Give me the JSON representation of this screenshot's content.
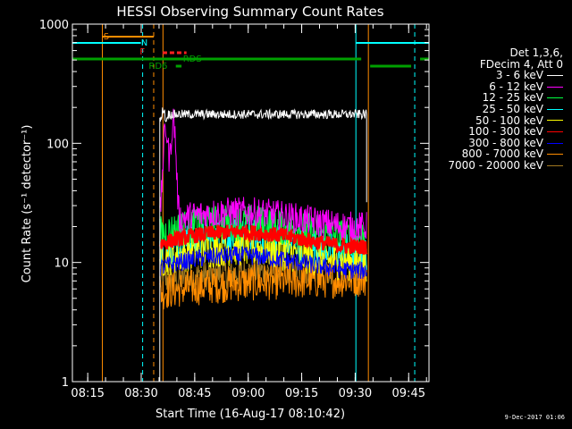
{
  "colors": {
    "background": "#000000",
    "axes": "#ffffff",
    "black_line": "#ffffff",
    "cyan": "#00ffff",
    "orange": "#ff8c00",
    "dark_green": "#00a000",
    "red": "#ff2020"
  },
  "chart_data": {
    "type": "line",
    "title": "HESSI Observing Summary Count Rates",
    "xlabel": "Start Time (16-Aug-17 08:10:42)",
    "ylabel": "Count Rate (s⁻¹ detector⁻¹)",
    "xlim_minutes": [
      0,
      100
    ],
    "x_ticks": [
      "08:15",
      "08:30",
      "08:45",
      "09:00",
      "09:15",
      "09:30",
      "09:45"
    ],
    "x_tick_minutes": [
      4.3,
      19.3,
      34.3,
      49.3,
      64.3,
      79.3,
      94.3
    ],
    "y_scale": "log",
    "ylim": [
      1,
      1000
    ],
    "y_ticks": [
      "1",
      "10",
      "100",
      "1000"
    ],
    "legend_header": [
      "Det 1,3,6,",
      "FDecim 4, Att 0"
    ],
    "series": [
      {
        "name": "3 - 6 keV",
        "color": "#ffffff",
        "level": 175,
        "amp": 0.03,
        "peak_start": 24.5
      },
      {
        "name": "6 - 12 keV",
        "color": "#ff00ff",
        "level": 22,
        "amp": 0.1
      },
      {
        "name": "12 - 25 keV",
        "color": "#00ff40",
        "level": 18,
        "amp": 0.12
      },
      {
        "name": "25 - 50 keV",
        "color": "#00ffff",
        "level": 13.5,
        "amp": 0.12
      },
      {
        "name": "50 - 100 keV",
        "color": "#ffff00",
        "level": 11,
        "amp": 0.12
      },
      {
        "name": "100 - 300 keV",
        "color": "#ff0000",
        "level": 15,
        "amp": 0.05
      },
      {
        "name": "300 - 800 keV",
        "color": "#0000ff",
        "level": 9.5,
        "amp": 0.06
      },
      {
        "name": "800 - 7000 keV",
        "color": "#ff8c00",
        "level": 6.5,
        "amp": 0.12
      },
      {
        "name": "7000 - 20000 keV",
        "color": "#a07820",
        "level": 8,
        "amp": 0.1
      }
    ],
    "state_labels": [
      "S",
      "N",
      "F",
      "RDS",
      "RD6"
    ],
    "time_markers": {
      "orange_solid": [
        8.4,
        25.4,
        83.0
      ],
      "orange_dashed": [
        22.8
      ],
      "cyan_solid": [
        79.5
      ],
      "cyan_dashed": [
        19.7,
        96.0
      ]
    },
    "data_window_minutes": [
      24.5,
      82.5
    ]
  },
  "stamp": "9-Dec-2017 01:06"
}
